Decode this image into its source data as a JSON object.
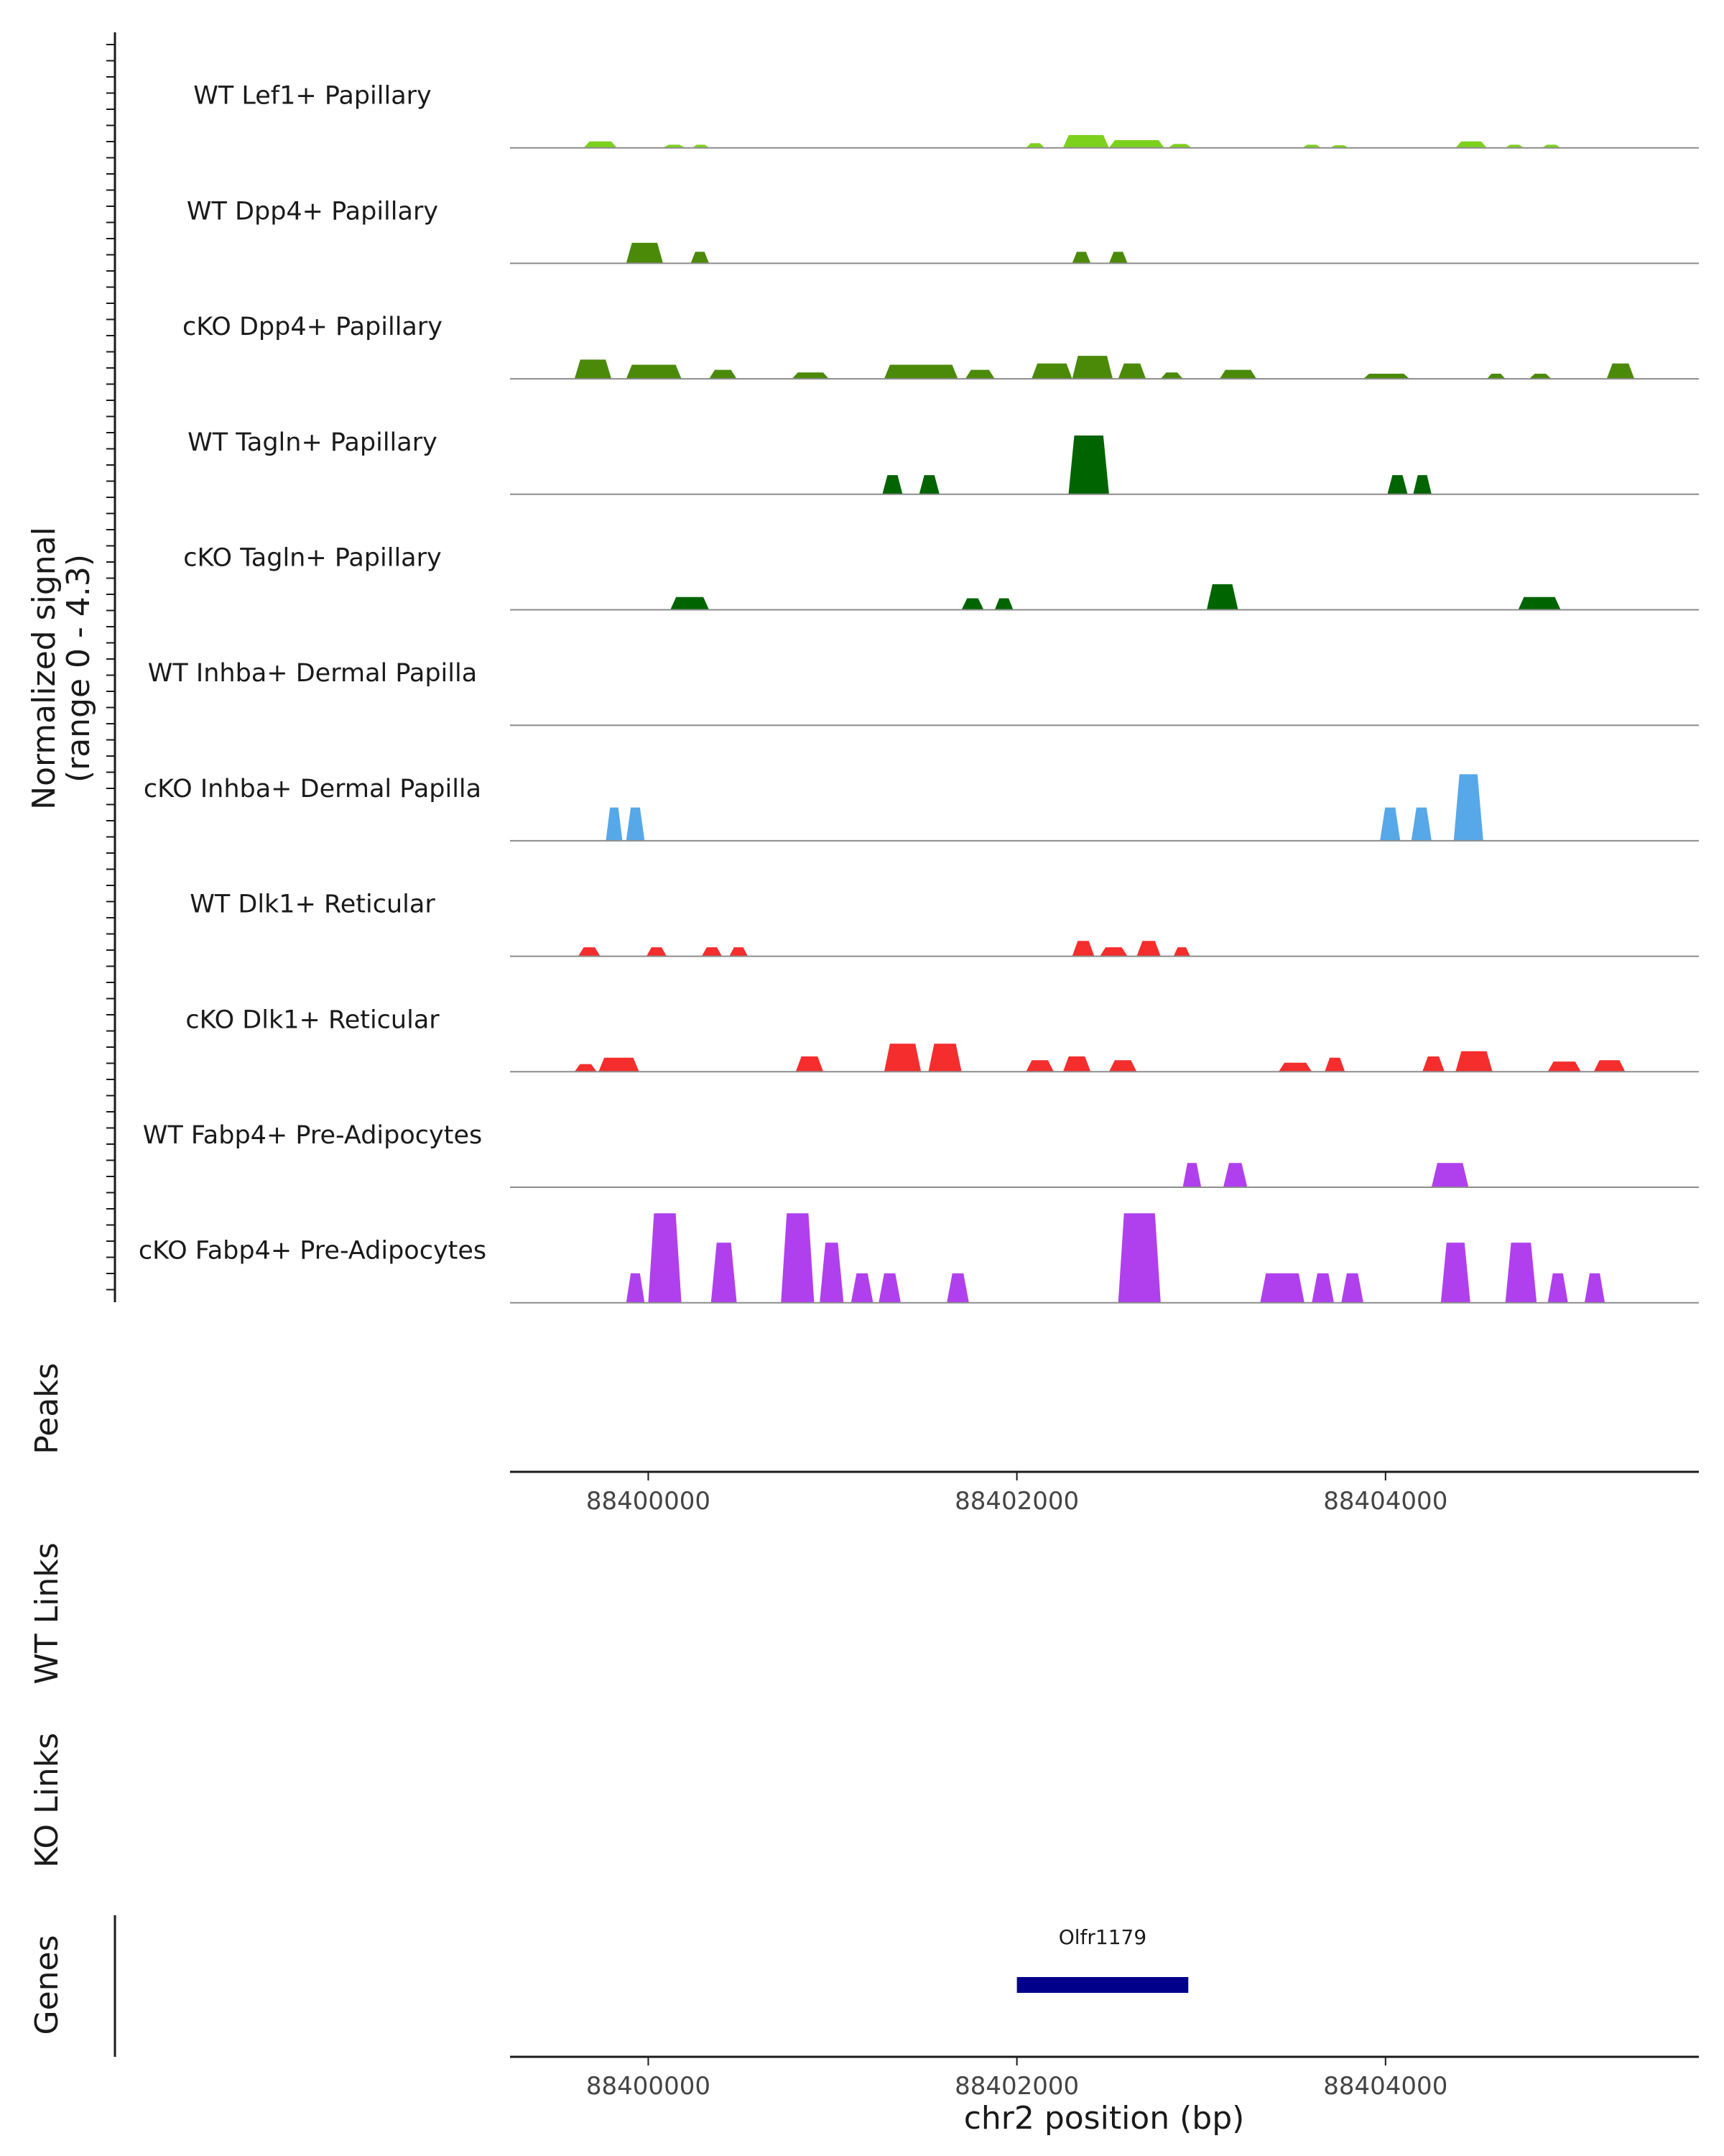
{
  "chart_data": {
    "type": "area",
    "title": "",
    "ylabel_line1": "Normalized signal",
    "ylabel_line2": "(range 0 - 4.3)",
    "xlabel": "chr2 position (bp)",
    "xlim": [
      88399250,
      88405700
    ],
    "ylim": [
      0,
      4.3
    ],
    "x_ticks": [
      {
        "value": 88400000,
        "label": "88400000"
      },
      {
        "value": 88402000,
        "label": "88402000"
      },
      {
        "value": 88404000,
        "label": "88404000"
      }
    ],
    "series": [
      {
        "name": "WT Lef1+ Papillary",
        "color": "#7cd11c",
        "segments": [
          {
            "start": 88399650,
            "end": 88399830,
            "height": 0.25
          },
          {
            "start": 88400080,
            "end": 88400200,
            "height": 0.12
          },
          {
            "start": 88400240,
            "end": 88400330,
            "height": 0.12
          },
          {
            "start": 88402050,
            "end": 88402150,
            "height": 0.18
          },
          {
            "start": 88402250,
            "end": 88402500,
            "height": 0.5
          },
          {
            "start": 88402500,
            "end": 88402800,
            "height": 0.3
          },
          {
            "start": 88402820,
            "end": 88402950,
            "height": 0.15
          },
          {
            "start": 88403550,
            "end": 88403650,
            "height": 0.12
          },
          {
            "start": 88403700,
            "end": 88403800,
            "height": 0.1
          },
          {
            "start": 88404380,
            "end": 88404550,
            "height": 0.25
          },
          {
            "start": 88404650,
            "end": 88404750,
            "height": 0.12
          },
          {
            "start": 88404850,
            "end": 88404950,
            "height": 0.12
          }
        ]
      },
      {
        "name": "WT Dpp4+ Papillary",
        "color": "#4a8a08",
        "segments": [
          {
            "start": 88399880,
            "end": 88400080,
            "height": 0.8
          },
          {
            "start": 88400230,
            "end": 88400330,
            "height": 0.45
          },
          {
            "start": 88402300,
            "end": 88402400,
            "height": 0.45
          },
          {
            "start": 88402500,
            "end": 88402600,
            "height": 0.45
          }
        ]
      },
      {
        "name": "cKO Dpp4+ Papillary",
        "color": "#4a8a08",
        "segments": [
          {
            "start": 88399600,
            "end": 88399800,
            "height": 0.75
          },
          {
            "start": 88399880,
            "end": 88400180,
            "height": 0.55
          },
          {
            "start": 88400330,
            "end": 88400480,
            "height": 0.35
          },
          {
            "start": 88400780,
            "end": 88400980,
            "height": 0.25
          },
          {
            "start": 88401280,
            "end": 88401680,
            "height": 0.55
          },
          {
            "start": 88401720,
            "end": 88401880,
            "height": 0.35
          },
          {
            "start": 88402080,
            "end": 88402300,
            "height": 0.6
          },
          {
            "start": 88402300,
            "end": 88402520,
            "height": 0.9
          },
          {
            "start": 88402550,
            "end": 88402700,
            "height": 0.6
          },
          {
            "start": 88402780,
            "end": 88402900,
            "height": 0.25
          },
          {
            "start": 88403100,
            "end": 88403300,
            "height": 0.35
          },
          {
            "start": 88403880,
            "end": 88404130,
            "height": 0.2
          },
          {
            "start": 88404550,
            "end": 88404650,
            "height": 0.2
          },
          {
            "start": 88404780,
            "end": 88404900,
            "height": 0.2
          },
          {
            "start": 88405200,
            "end": 88405350,
            "height": 0.6
          }
        ]
      },
      {
        "name": "WT Tagln+ Papillary",
        "color": "#006400",
        "segments": [
          {
            "start": 88401270,
            "end": 88401380,
            "height": 0.75
          },
          {
            "start": 88401470,
            "end": 88401580,
            "height": 0.75
          },
          {
            "start": 88402280,
            "end": 88402500,
            "height": 2.3
          },
          {
            "start": 88404010,
            "end": 88404120,
            "height": 0.75
          },
          {
            "start": 88404150,
            "end": 88404250,
            "height": 0.75
          }
        ]
      },
      {
        "name": "cKO Tagln+ Papillary",
        "color": "#006400",
        "segments": [
          {
            "start": 88400120,
            "end": 88400330,
            "height": 0.5
          },
          {
            "start": 88401700,
            "end": 88401820,
            "height": 0.45
          },
          {
            "start": 88401880,
            "end": 88401980,
            "height": 0.45
          },
          {
            "start": 88403030,
            "end": 88403200,
            "height": 1.0
          },
          {
            "start": 88404720,
            "end": 88404950,
            "height": 0.5
          }
        ]
      },
      {
        "name": "WT Inhba+ Dermal Papilla",
        "color": "#56a8e8",
        "segments": []
      },
      {
        "name": "cKO Inhba+ Dermal Papilla",
        "color": "#56a8e8",
        "segments": [
          {
            "start": 88399770,
            "end": 88399860,
            "height": 1.3
          },
          {
            "start": 88399880,
            "end": 88399980,
            "height": 1.3
          },
          {
            "start": 88403970,
            "end": 88404080,
            "height": 1.3
          },
          {
            "start": 88404140,
            "end": 88404250,
            "height": 1.3
          },
          {
            "start": 88404370,
            "end": 88404530,
            "height": 2.6
          }
        ]
      },
      {
        "name": "WT Dlk1+ Reticular",
        "color": "#f52d2d",
        "segments": [
          {
            "start": 88399620,
            "end": 88399740,
            "height": 0.35
          },
          {
            "start": 88399990,
            "end": 88400100,
            "height": 0.35
          },
          {
            "start": 88400290,
            "end": 88400400,
            "height": 0.35
          },
          {
            "start": 88400440,
            "end": 88400540,
            "height": 0.35
          },
          {
            "start": 88402300,
            "end": 88402420,
            "height": 0.6
          },
          {
            "start": 88402450,
            "end": 88402600,
            "height": 0.35
          },
          {
            "start": 88402650,
            "end": 88402780,
            "height": 0.6
          },
          {
            "start": 88402850,
            "end": 88402940,
            "height": 0.35
          }
        ]
      },
      {
        "name": "cKO Dlk1+ Reticular",
        "color": "#f52d2d",
        "segments": [
          {
            "start": 88399600,
            "end": 88399720,
            "height": 0.3
          },
          {
            "start": 88399730,
            "end": 88399950,
            "height": 0.55
          },
          {
            "start": 88400800,
            "end": 88400950,
            "height": 0.6
          },
          {
            "start": 88401280,
            "end": 88401480,
            "height": 1.1
          },
          {
            "start": 88401520,
            "end": 88401700,
            "height": 1.1
          },
          {
            "start": 88402050,
            "end": 88402200,
            "height": 0.45
          },
          {
            "start": 88402250,
            "end": 88402400,
            "height": 0.6
          },
          {
            "start": 88402500,
            "end": 88402650,
            "height": 0.45
          },
          {
            "start": 88403420,
            "end": 88403600,
            "height": 0.35
          },
          {
            "start": 88403670,
            "end": 88403780,
            "height": 0.55
          },
          {
            "start": 88404200,
            "end": 88404320,
            "height": 0.6
          },
          {
            "start": 88404380,
            "end": 88404580,
            "height": 0.8
          },
          {
            "start": 88404880,
            "end": 88405060,
            "height": 0.4
          },
          {
            "start": 88405130,
            "end": 88405300,
            "height": 0.45
          }
        ]
      },
      {
        "name": "WT Fabp4+ Pre-Adipocytes",
        "color": "#b040ee",
        "segments": [
          {
            "start": 88402900,
            "end": 88403000,
            "height": 0.95
          },
          {
            "start": 88403120,
            "end": 88403250,
            "height": 0.95
          },
          {
            "start": 88404250,
            "end": 88404450,
            "height": 0.95
          }
        ]
      },
      {
        "name": "cKO Fabp4+ Pre-Adipocytes",
        "color": "#b040ee",
        "segments": [
          {
            "start": 88399880,
            "end": 88399980,
            "height": 1.15
          },
          {
            "start": 88400000,
            "end": 88400180,
            "height": 3.5
          },
          {
            "start": 88400340,
            "end": 88400480,
            "height": 2.35
          },
          {
            "start": 88400720,
            "end": 88400900,
            "height": 3.5
          },
          {
            "start": 88400930,
            "end": 88401060,
            "height": 2.35
          },
          {
            "start": 88401100,
            "end": 88401220,
            "height": 1.15
          },
          {
            "start": 88401250,
            "end": 88401370,
            "height": 1.15
          },
          {
            "start": 88401620,
            "end": 88401740,
            "height": 1.15
          },
          {
            "start": 88402550,
            "end": 88402780,
            "height": 3.5
          },
          {
            "start": 88403320,
            "end": 88403560,
            "height": 1.15
          },
          {
            "start": 88403600,
            "end": 88403720,
            "height": 1.15
          },
          {
            "start": 88403760,
            "end": 88403880,
            "height": 1.15
          },
          {
            "start": 88404300,
            "end": 88404460,
            "height": 2.35
          },
          {
            "start": 88404650,
            "end": 88404820,
            "height": 2.35
          },
          {
            "start": 88404880,
            "end": 88404990,
            "height": 1.15
          },
          {
            "start": 88405080,
            "end": 88405190,
            "height": 1.15
          }
        ]
      }
    ],
    "panels": [
      "Peaks",
      "WT Links",
      "KO Links",
      "Genes"
    ],
    "genes": [
      {
        "name": "Olfr1179",
        "start": 88402000,
        "end": 88402930,
        "color": "#00008b"
      }
    ]
  }
}
